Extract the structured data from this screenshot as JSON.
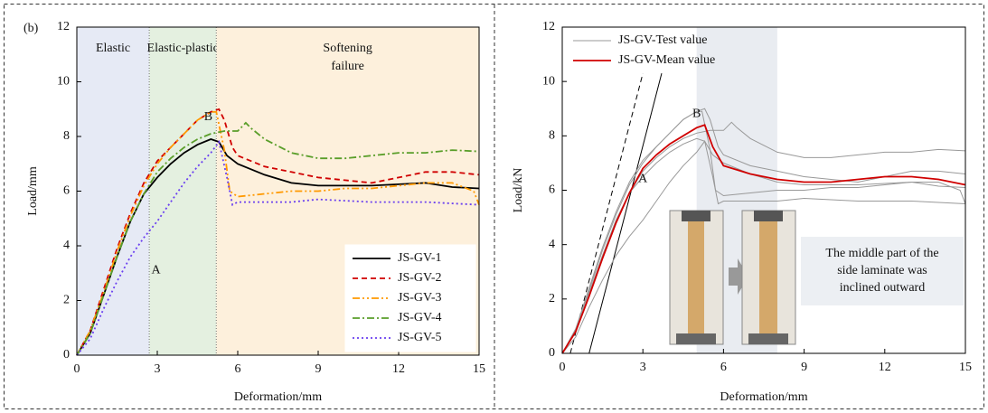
{
  "chart_data": [
    {
      "type": "line",
      "panel_label": "(b)",
      "x_label": "Deformation/mm",
      "y_label": "Load/mm",
      "xlim": [
        0,
        15
      ],
      "ylim": [
        0,
        12
      ],
      "xticks": [
        0,
        3,
        6,
        9,
        12,
        15
      ],
      "yticks": [
        0,
        2,
        4,
        6,
        8,
        10,
        12
      ],
      "legend": "lower right",
      "regions": [
        {
          "label": [
            "Elastic"
          ],
          "x": [
            0,
            2.7
          ],
          "color": "#e6eaf5"
        },
        {
          "label": [
            "Elastic-plastic"
          ],
          "x": [
            2.7,
            5.2
          ],
          "color": "#e4f0e0"
        },
        {
          "label": [
            "Softening",
            "failure"
          ],
          "x": [
            5.2,
            15
          ],
          "color": "#fdf0dc"
        }
      ],
      "annotations": [
        {
          "text": "A",
          "x": 2.95,
          "y": 3.1,
          "color": "#c00000"
        },
        {
          "text": "B",
          "x": 4.9,
          "y": 8.7,
          "color": "#c00000"
        }
      ],
      "series": [
        {
          "name": "JS-GV-1",
          "color": "#000000",
          "dash": "solid",
          "x": [
            0,
            0.5,
            1,
            1.5,
            2,
            2.5,
            3,
            3.5,
            4,
            4.5,
            5,
            5.3,
            5.6,
            6,
            7,
            8,
            9,
            10,
            11,
            12,
            13,
            14,
            15
          ],
          "values": [
            0,
            0.8,
            2.2,
            3.6,
            4.9,
            5.9,
            6.5,
            7,
            7.4,
            7.7,
            7.9,
            7.8,
            7.3,
            7,
            6.6,
            6.3,
            6.2,
            6.2,
            6.2,
            6.25,
            6.3,
            6.15,
            6.1
          ]
        },
        {
          "name": "JS-GV-2",
          "color": "#d00000",
          "dash": "dashed",
          "x": [
            0,
            0.5,
            1,
            1.5,
            2,
            2.5,
            3,
            3.5,
            4,
            4.5,
            5,
            5.3,
            5.5,
            5.8,
            6,
            7,
            8,
            9,
            10,
            11,
            12,
            13,
            14,
            15
          ],
          "values": [
            0,
            0.9,
            2.4,
            3.9,
            5.2,
            6.3,
            7.1,
            7.6,
            8.1,
            8.6,
            8.9,
            9,
            8.6,
            7.6,
            7.3,
            6.9,
            6.7,
            6.5,
            6.4,
            6.3,
            6.5,
            6.7,
            6.7,
            6.6
          ]
        },
        {
          "name": "JS-GV-3",
          "color": "#ff9900",
          "dash": "dashdotdot",
          "x": [
            0,
            0.5,
            1,
            1.5,
            2,
            2.5,
            3,
            3.5,
            4,
            4.5,
            5,
            5.2,
            5.5,
            5.7,
            6,
            7,
            8,
            9,
            10,
            11,
            12,
            13,
            14,
            14.8,
            15
          ],
          "values": [
            0,
            0.9,
            2.3,
            3.8,
            5.1,
            6.2,
            7,
            7.6,
            8.1,
            8.6,
            8.9,
            8.9,
            7.5,
            6,
            5.8,
            5.9,
            6,
            6,
            6.1,
            6.1,
            6.2,
            6.3,
            6.3,
            6,
            5.5
          ]
        },
        {
          "name": "JS-GV-4",
          "color": "#5a9e2a",
          "dash": "dashdot",
          "x": [
            0,
            0.5,
            1,
            1.5,
            2,
            2.5,
            3,
            3.5,
            4,
            4.5,
            5,
            5.5,
            6,
            6.3,
            6.5,
            7,
            8,
            9,
            10,
            11,
            12,
            13,
            14,
            15
          ],
          "values": [
            0,
            0.8,
            2.2,
            3.6,
            4.9,
            5.9,
            6.7,
            7.2,
            7.6,
            7.9,
            8.1,
            8.2,
            8.2,
            8.5,
            8.3,
            7.9,
            7.4,
            7.2,
            7.2,
            7.3,
            7.4,
            7.4,
            7.5,
            7.45
          ]
        },
        {
          "name": "JS-GV-5",
          "color": "#6a3ff0",
          "dash": "dotted",
          "x": [
            0,
            0.5,
            1,
            1.5,
            2,
            2.5,
            3,
            3.5,
            4,
            4.5,
            5,
            5.3,
            5.6,
            5.8,
            6,
            7,
            8,
            9,
            10,
            11,
            12,
            13,
            14,
            15
          ],
          "values": [
            0,
            0.6,
            1.7,
            2.7,
            3.6,
            4.3,
            4.9,
            5.6,
            6.3,
            6.9,
            7.4,
            7.8,
            6.5,
            5.5,
            5.6,
            5.6,
            5.6,
            5.7,
            5.65,
            5.6,
            5.6,
            5.6,
            5.55,
            5.5
          ]
        }
      ]
    },
    {
      "type": "line",
      "x_label": "Deformation/mm",
      "y_label": "Load/kN",
      "xlim": [
        0,
        15
      ],
      "ylim": [
        0,
        12
      ],
      "xticks": [
        0,
        3,
        6,
        9,
        12,
        15
      ],
      "yticks": [
        0,
        2,
        4,
        6,
        8,
        10,
        12
      ],
      "legend": "upper left",
      "band": {
        "x": [
          5,
          8
        ],
        "color": "#e9ecf1"
      },
      "reference_lines": [
        {
          "x": [
            0.3,
            3
          ],
          "values": [
            0,
            10.3
          ],
          "dash": "dashed",
          "color": "#000000"
        },
        {
          "x": [
            1,
            3.7
          ],
          "values": [
            0,
            10.3
          ],
          "dash": "solid",
          "color": "#000000"
        }
      ],
      "annotations": [
        {
          "text": "A",
          "x": 3,
          "y": 6.4,
          "color": "#c00000"
        },
        {
          "text": "B",
          "x": 5,
          "y": 8.8,
          "color": "#c00000"
        }
      ],
      "note": [
        "The middle part of the",
        "side laminate was",
        "inclined outward"
      ],
      "series": [
        {
          "name": "JS-GV-Test value",
          "color": "#999999",
          "dash": "solid",
          "curves": [
            {
              "x": [
                0,
                0.5,
                1,
                1.5,
                2,
                2.5,
                3,
                3.5,
                4,
                4.5,
                5,
                5.3,
                5.6,
                6,
                7,
                8,
                9,
                10,
                11,
                12,
                13,
                14,
                15
              ],
              "values": [
                0,
                0.8,
                2.2,
                3.6,
                4.9,
                5.9,
                6.5,
                7,
                7.4,
                7.7,
                7.9,
                7.8,
                7.3,
                7,
                6.6,
                6.3,
                6.2,
                6.2,
                6.2,
                6.25,
                6.3,
                6.15,
                6.1
              ]
            },
            {
              "x": [
                0,
                0.5,
                1,
                1.5,
                2,
                2.5,
                3,
                3.5,
                4,
                4.5,
                5,
                5.3,
                5.5,
                5.8,
                6,
                7,
                8,
                9,
                10,
                11,
                12,
                13,
                14,
                15
              ],
              "values": [
                0,
                0.9,
                2.4,
                3.9,
                5.2,
                6.3,
                7.1,
                7.6,
                8.1,
                8.6,
                8.9,
                9,
                8.6,
                7.6,
                7.3,
                6.9,
                6.7,
                6.5,
                6.4,
                6.3,
                6.5,
                6.7,
                6.7,
                6.6
              ]
            },
            {
              "x": [
                0,
                0.5,
                1,
                1.5,
                2,
                2.5,
                3,
                3.5,
                4,
                4.5,
                5,
                5.2,
                5.5,
                5.7,
                6,
                7,
                8,
                9,
                10,
                11,
                12,
                13,
                14,
                14.8,
                15
              ],
              "values": [
                0,
                0.9,
                2.3,
                3.8,
                5.1,
                6.2,
                7,
                7.6,
                8.1,
                8.6,
                8.9,
                8.9,
                7.5,
                6,
                5.8,
                5.9,
                6,
                6,
                6.1,
                6.1,
                6.2,
                6.3,
                6.3,
                6,
                5.5
              ]
            },
            {
              "x": [
                0,
                0.5,
                1,
                1.5,
                2,
                2.5,
                3,
                3.5,
                4,
                4.5,
                5,
                5.5,
                6,
                6.3,
                6.5,
                7,
                8,
                9,
                10,
                11,
                12,
                13,
                14,
                15
              ],
              "values": [
                0,
                0.8,
                2.2,
                3.6,
                4.9,
                5.9,
                6.7,
                7.2,
                7.6,
                7.9,
                8.1,
                8.2,
                8.2,
                8.5,
                8.3,
                7.9,
                7.4,
                7.2,
                7.2,
                7.3,
                7.4,
                7.4,
                7.5,
                7.45
              ]
            },
            {
              "x": [
                0,
                0.5,
                1,
                1.5,
                2,
                2.5,
                3,
                3.5,
                4,
                4.5,
                5,
                5.3,
                5.6,
                5.8,
                6,
                7,
                8,
                9,
                10,
                11,
                12,
                13,
                14,
                15
              ],
              "values": [
                0,
                0.6,
                1.7,
                2.7,
                3.6,
                4.3,
                4.9,
                5.6,
                6.3,
                6.9,
                7.4,
                7.8,
                6.5,
                5.5,
                5.6,
                5.6,
                5.6,
                5.7,
                5.65,
                5.6,
                5.6,
                5.6,
                5.55,
                5.5
              ]
            }
          ]
        },
        {
          "name": "JS-GV-Mean value",
          "color": "#d00000",
          "dash": "solid",
          "x": [
            0,
            0.5,
            1,
            1.5,
            2,
            2.5,
            3,
            3.5,
            4,
            4.5,
            5,
            5.3,
            5.6,
            6,
            7,
            8,
            9,
            10,
            11,
            12,
            13,
            14,
            15
          ],
          "values": [
            0,
            0.8,
            2.1,
            3.5,
            4.8,
            5.9,
            6.8,
            7.3,
            7.7,
            8,
            8.3,
            8.4,
            7.6,
            6.9,
            6.6,
            6.4,
            6.3,
            6.3,
            6.4,
            6.5,
            6.5,
            6.4,
            6.2
          ]
        }
      ]
    }
  ]
}
